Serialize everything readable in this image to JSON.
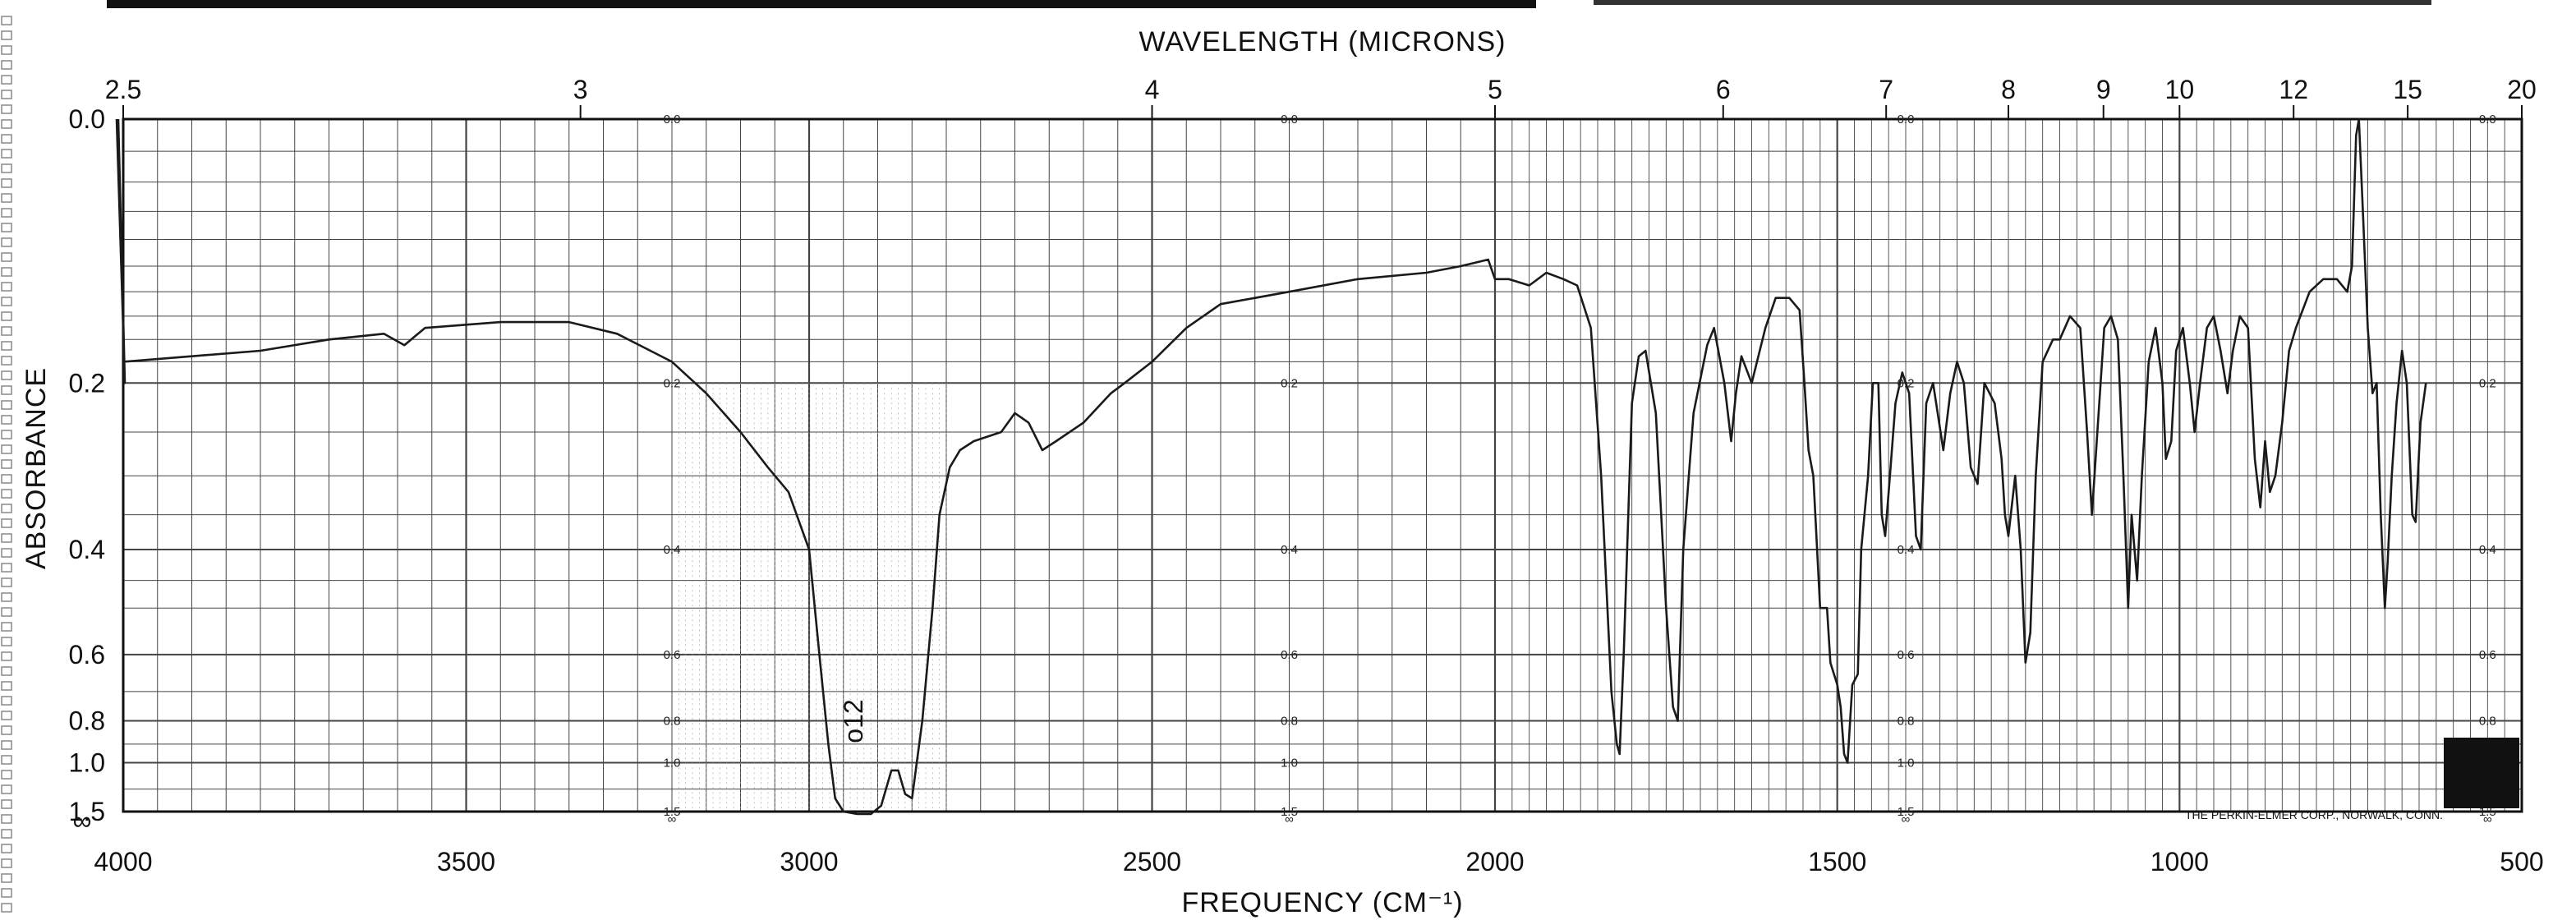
{
  "chart_data": {
    "type": "line",
    "title": "",
    "xlabel": "FREQUENCY (CM⁻¹)",
    "x2label": "WAVELENGTH (MICRONS)",
    "ylabel": "ABSORBANCE",
    "xlim": [
      4000,
      500
    ],
    "x_scale": "split-linear",
    "y_scale": "log-transmittance (absorbance)",
    "ylim": [
      0,
      1.5
    ],
    "x_ticks": [
      "4000",
      "3500",
      "3000",
      "2500",
      "2000",
      "1500",
      "1000",
      "500"
    ],
    "wavelength_ticks": [
      "2.5",
      "3",
      "4",
      "5",
      "6",
      "7",
      "8",
      "9",
      "10",
      "12",
      "15",
      "20"
    ],
    "y_ticks": [
      "0.0",
      "0.2",
      "0.4",
      "0.6",
      "0.8",
      "1.0",
      "1.5"
    ],
    "inner_y_ticks": [
      "0.0",
      "0.2",
      "0.4",
      "0.6",
      "0.8",
      "1.0",
      "1.5"
    ],
    "y_infinity_label": "∞",
    "annotation": "o12",
    "footer_note": "THE PERKIN-ELMER CORP., NORWALK, CONN.",
    "grid": true,
    "line_color": "#1a1a1a",
    "series": [
      {
        "points": [
          [
            4000,
            0.18
          ],
          [
            3900,
            0.175
          ],
          [
            3800,
            0.17
          ],
          [
            3700,
            0.16
          ],
          [
            3620,
            0.155
          ],
          [
            3590,
            0.165
          ],
          [
            3560,
            0.15
          ],
          [
            3450,
            0.145
          ],
          [
            3350,
            0.145
          ],
          [
            3280,
            0.155
          ],
          [
            3200,
            0.18
          ],
          [
            3150,
            0.21
          ],
          [
            3100,
            0.25
          ],
          [
            3060,
            0.29
          ],
          [
            3030,
            0.32
          ],
          [
            3000,
            0.4
          ],
          [
            2985,
            0.6
          ],
          [
            2972,
            0.9
          ],
          [
            2962,
            1.3
          ],
          [
            2950,
            1.5
          ],
          [
            2930,
            1.55
          ],
          [
            2910,
            1.55
          ],
          [
            2895,
            1.4
          ],
          [
            2880,
            1.05
          ],
          [
            2870,
            1.05
          ],
          [
            2860,
            1.25
          ],
          [
            2850,
            1.3
          ],
          [
            2835,
            0.8
          ],
          [
            2820,
            0.5
          ],
          [
            2810,
            0.35
          ],
          [
            2795,
            0.29
          ],
          [
            2780,
            0.27
          ],
          [
            2760,
            0.26
          ],
          [
            2720,
            0.25
          ],
          [
            2700,
            0.23
          ],
          [
            2680,
            0.24
          ],
          [
            2660,
            0.27
          ],
          [
            2640,
            0.26
          ],
          [
            2600,
            0.24
          ],
          [
            2560,
            0.21
          ],
          [
            2540,
            0.2
          ],
          [
            2500,
            0.18
          ],
          [
            2450,
            0.15
          ],
          [
            2400,
            0.13
          ],
          [
            2300,
            0.12
          ],
          [
            2200,
            0.11
          ],
          [
            2100,
            0.105
          ],
          [
            2050,
            0.1
          ],
          [
            2010,
            0.095
          ],
          [
            2000,
            0.11
          ],
          [
            1980,
            0.11
          ],
          [
            1950,
            0.115
          ],
          [
            1925,
            0.105
          ],
          [
            1900,
            0.11
          ],
          [
            1880,
            0.115
          ],
          [
            1860,
            0.15
          ],
          [
            1845,
            0.3
          ],
          [
            1830,
            0.7
          ],
          [
            1822,
            0.9
          ],
          [
            1818,
            0.95
          ],
          [
            1812,
            0.6
          ],
          [
            1800,
            0.22
          ],
          [
            1790,
            0.175
          ],
          [
            1780,
            0.17
          ],
          [
            1765,
            0.23
          ],
          [
            1750,
            0.5
          ],
          [
            1740,
            0.75
          ],
          [
            1733,
            0.8
          ],
          [
            1725,
            0.4
          ],
          [
            1710,
            0.23
          ],
          [
            1690,
            0.165
          ],
          [
            1680,
            0.15
          ],
          [
            1665,
            0.2
          ],
          [
            1655,
            0.26
          ],
          [
            1648,
            0.21
          ],
          [
            1640,
            0.175
          ],
          [
            1625,
            0.2
          ],
          [
            1605,
            0.15
          ],
          [
            1590,
            0.125
          ],
          [
            1570,
            0.125
          ],
          [
            1555,
            0.135
          ],
          [
            1548,
            0.2
          ],
          [
            1542,
            0.27
          ],
          [
            1535,
            0.3
          ],
          [
            1525,
            0.5
          ],
          [
            1515,
            0.5
          ],
          [
            1510,
            0.62
          ],
          [
            1500,
            0.68
          ],
          [
            1495,
            0.75
          ],
          [
            1490,
            0.95
          ],
          [
            1485,
            1.0
          ],
          [
            1478,
            0.68
          ],
          [
            1470,
            0.65
          ],
          [
            1465,
            0.4
          ],
          [
            1455,
            0.3
          ],
          [
            1448,
            0.2
          ],
          [
            1440,
            0.2
          ],
          [
            1435,
            0.35
          ],
          [
            1430,
            0.38
          ],
          [
            1423,
            0.3
          ],
          [
            1415,
            0.22
          ],
          [
            1405,
            0.19
          ],
          [
            1395,
            0.21
          ],
          [
            1385,
            0.38
          ],
          [
            1378,
            0.4
          ],
          [
            1370,
            0.22
          ],
          [
            1360,
            0.2
          ],
          [
            1345,
            0.27
          ],
          [
            1335,
            0.21
          ],
          [
            1325,
            0.18
          ],
          [
            1315,
            0.2
          ],
          [
            1305,
            0.29
          ],
          [
            1295,
            0.31
          ],
          [
            1285,
            0.2
          ],
          [
            1270,
            0.22
          ],
          [
            1260,
            0.28
          ],
          [
            1255,
            0.35
          ],
          [
            1250,
            0.38
          ],
          [
            1240,
            0.3
          ],
          [
            1232,
            0.4
          ],
          [
            1225,
            0.62
          ],
          [
            1218,
            0.55
          ],
          [
            1210,
            0.3
          ],
          [
            1200,
            0.18
          ],
          [
            1185,
            0.16
          ],
          [
            1175,
            0.16
          ],
          [
            1160,
            0.14
          ],
          [
            1145,
            0.15
          ],
          [
            1135,
            0.25
          ],
          [
            1128,
            0.35
          ],
          [
            1120,
            0.25
          ],
          [
            1110,
            0.15
          ],
          [
            1100,
            0.14
          ],
          [
            1090,
            0.16
          ],
          [
            1082,
            0.3
          ],
          [
            1075,
            0.5
          ],
          [
            1070,
            0.35
          ],
          [
            1062,
            0.45
          ],
          [
            1055,
            0.3
          ],
          [
            1045,
            0.18
          ],
          [
            1035,
            0.15
          ],
          [
            1025,
            0.2
          ],
          [
            1020,
            0.28
          ],
          [
            1012,
            0.26
          ],
          [
            1005,
            0.17
          ],
          [
            995,
            0.15
          ],
          [
            985,
            0.2
          ],
          [
            978,
            0.25
          ],
          [
            970,
            0.2
          ],
          [
            960,
            0.15
          ],
          [
            950,
            0.14
          ],
          [
            940,
            0.17
          ],
          [
            930,
            0.21
          ],
          [
            922,
            0.17
          ],
          [
            912,
            0.14
          ],
          [
            900,
            0.15
          ],
          [
            890,
            0.28
          ],
          [
            882,
            0.34
          ],
          [
            875,
            0.26
          ],
          [
            868,
            0.32
          ],
          [
            860,
            0.3
          ],
          [
            850,
            0.24
          ],
          [
            840,
            0.17
          ],
          [
            830,
            0.15
          ],
          [
            810,
            0.12
          ],
          [
            790,
            0.11
          ],
          [
            770,
            0.11
          ],
          [
            755,
            0.12
          ],
          [
            748,
            0.1
          ],
          [
            742,
            0.01
          ],
          [
            738,
            0.0
          ],
          [
            733,
            0.05
          ],
          [
            725,
            0.15
          ],
          [
            718,
            0.21
          ],
          [
            712,
            0.2
          ],
          [
            706,
            0.35
          ],
          [
            700,
            0.5
          ],
          [
            696,
            0.42
          ],
          [
            690,
            0.3
          ],
          [
            683,
            0.22
          ],
          [
            675,
            0.17
          ],
          [
            668,
            0.2
          ],
          [
            660,
            0.35
          ],
          [
            655,
            0.36
          ],
          [
            648,
            0.24
          ],
          [
            640,
            0.2
          ]
        ]
      }
    ]
  }
}
